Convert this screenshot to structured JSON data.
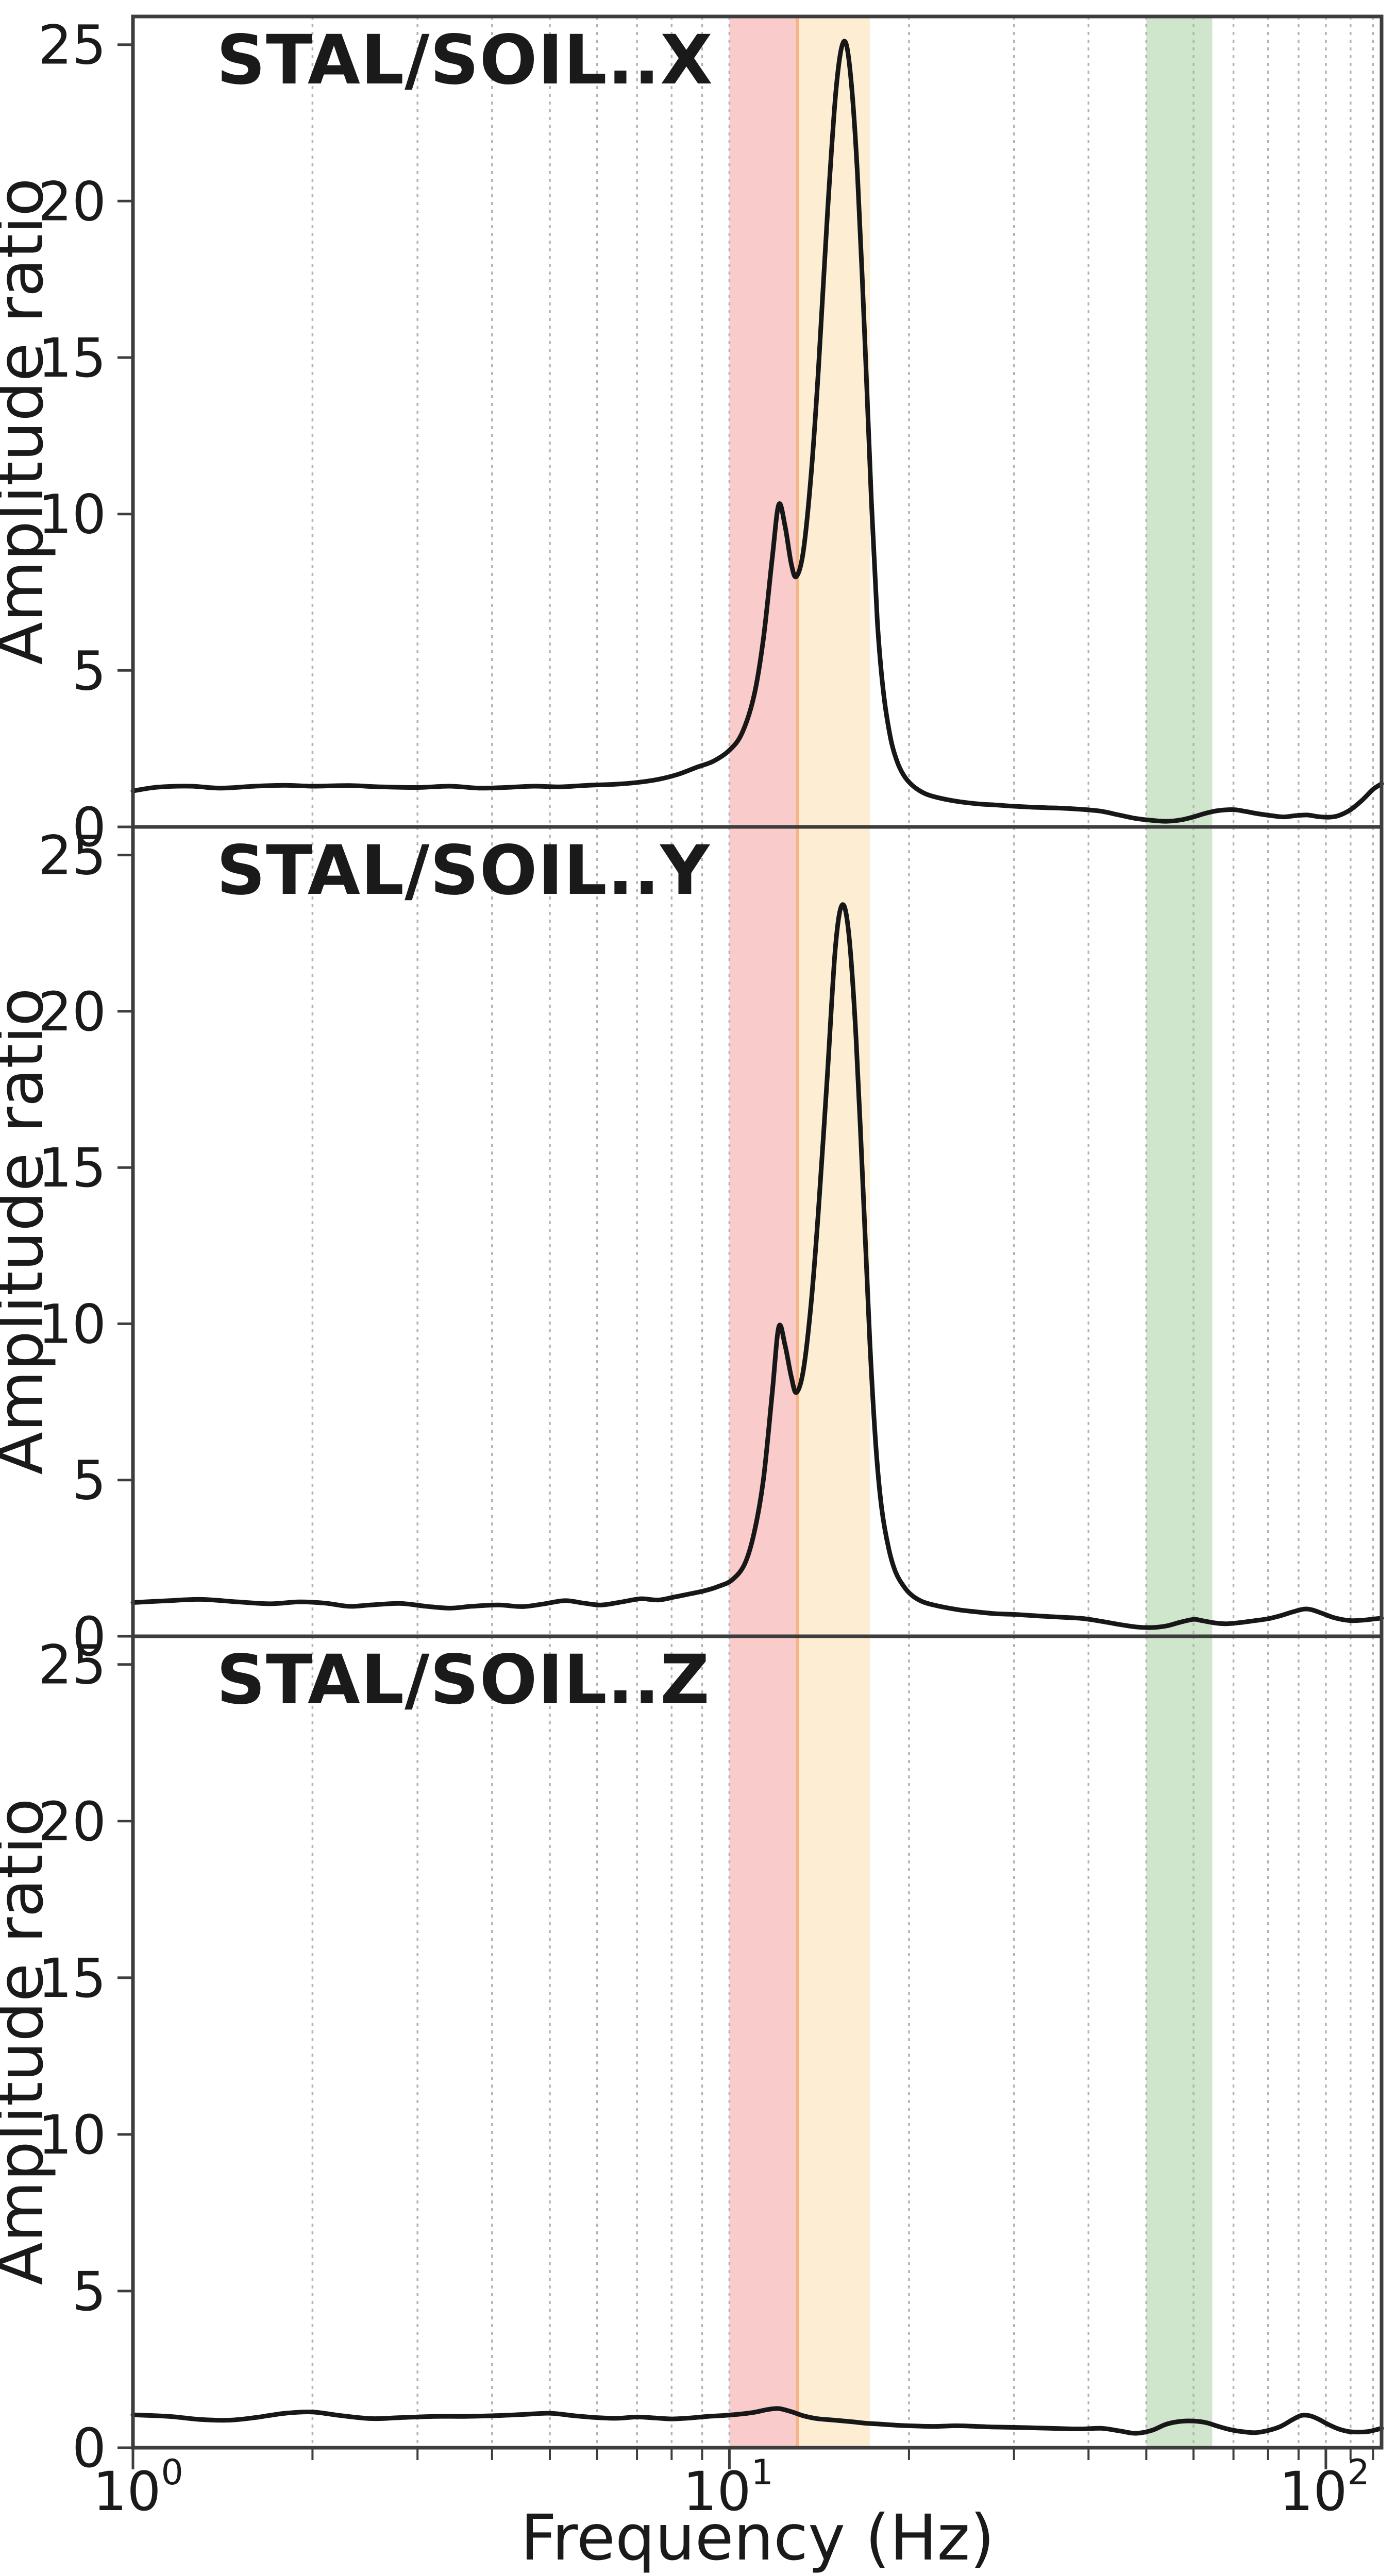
{
  "figure": {
    "background": "#ffffff",
    "xlabel": "Frequency (Hz)",
    "ylabel": "Amplitude ratio",
    "y_ticks": [
      0,
      5,
      10,
      15,
      20,
      25
    ],
    "x_ticks": [
      {
        "base": "10",
        "exp": "0",
        "hz": 1
      },
      {
        "base": "10",
        "exp": "1",
        "hz": 10
      },
      {
        "base": "10",
        "exp": "2",
        "hz": 100
      }
    ],
    "x_minor_tick_hz": [
      2,
      3,
      4,
      5,
      6,
      7,
      8,
      9,
      20,
      30,
      40,
      50,
      60,
      70,
      80,
      90,
      110,
      120
    ],
    "grid_hz": [
      2,
      3,
      4,
      5,
      6,
      7,
      8,
      9,
      10,
      20,
      30,
      40,
      50,
      60,
      70,
      80,
      90,
      100,
      110,
      120
    ],
    "colors": {
      "curve": "#171717",
      "grid": "#b3b3b3",
      "spine": "#3d3d3d",
      "band_red": "#f9cbcb",
      "band_orange": "#fdeed3",
      "band_seam": "#f7b488",
      "band_green": "#cfe6cc"
    },
    "bands": [
      {
        "name": "band-red",
        "from_hz": 10,
        "to_hz": 13,
        "color_key": "band_red"
      },
      {
        "name": "band-orange",
        "from_hz": 13,
        "to_hz": 17.2,
        "color_key": "band_orange"
      },
      {
        "name": "band-green",
        "from_hz": 50,
        "to_hz": 64.5,
        "color_key": "band_green"
      }
    ]
  },
  "chart_data": [
    {
      "type": "line",
      "title": "STAL/SOIL..X",
      "xlabel": "Frequency (Hz)",
      "ylabel": "Amplitude ratio",
      "xscale": "log",
      "xlim": [
        1,
        124
      ],
      "ylim": [
        0,
        25.9
      ],
      "grid": true,
      "highlight_bands_hz": [
        [
          10,
          13
        ],
        [
          13,
          17.2
        ],
        [
          50,
          64.5
        ]
      ],
      "peaks": [
        {
          "hz": 12.1,
          "value": 10.3
        },
        {
          "hz": 15.55,
          "value": 25.1
        }
      ],
      "points": [
        [
          1,
          1.15
        ],
        [
          1.1,
          1.27
        ],
        [
          1.25,
          1.3
        ],
        [
          1.4,
          1.24
        ],
        [
          1.6,
          1.3
        ],
        [
          1.8,
          1.33
        ],
        [
          2.0,
          1.3
        ],
        [
          2.3,
          1.32
        ],
        [
          2.6,
          1.28
        ],
        [
          3.0,
          1.26
        ],
        [
          3.4,
          1.3
        ],
        [
          3.8,
          1.24
        ],
        [
          4.2,
          1.26
        ],
        [
          4.7,
          1.3
        ],
        [
          5.2,
          1.28
        ],
        [
          5.8,
          1.33
        ],
        [
          6.4,
          1.36
        ],
        [
          7.0,
          1.42
        ],
        [
          7.6,
          1.52
        ],
        [
          8.2,
          1.68
        ],
        [
          8.8,
          1.9
        ],
        [
          9.4,
          2.1
        ],
        [
          10.0,
          2.45
        ],
        [
          10.5,
          3.0
        ],
        [
          11.0,
          4.2
        ],
        [
          11.4,
          6.0
        ],
        [
          11.8,
          8.6
        ],
        [
          12.1,
          10.3
        ],
        [
          12.4,
          9.6
        ],
        [
          12.7,
          8.4
        ],
        [
          12.95,
          8.0
        ],
        [
          13.3,
          8.8
        ],
        [
          13.7,
          11.2
        ],
        [
          14.1,
          14.6
        ],
        [
          14.6,
          19.6
        ],
        [
          15.1,
          23.6
        ],
        [
          15.55,
          25.1
        ],
        [
          15.95,
          24.1
        ],
        [
          16.4,
          20.8
        ],
        [
          16.9,
          15.2
        ],
        [
          17.3,
          10.4
        ],
        [
          17.7,
          6.6
        ],
        [
          18.1,
          4.4
        ],
        [
          18.6,
          2.9
        ],
        [
          19.1,
          2.1
        ],
        [
          19.6,
          1.65
        ],
        [
          20.2,
          1.35
        ],
        [
          21,
          1.12
        ],
        [
          22,
          0.97
        ],
        [
          24,
          0.82
        ],
        [
          26,
          0.74
        ],
        [
          28,
          0.7
        ],
        [
          30,
          0.66
        ],
        [
          33,
          0.62
        ],
        [
          36,
          0.6
        ],
        [
          39,
          0.56
        ],
        [
          42,
          0.5
        ],
        [
          45,
          0.38
        ],
        [
          48,
          0.27
        ],
        [
          51,
          0.21
        ],
        [
          54,
          0.18
        ],
        [
          57,
          0.22
        ],
        [
          60,
          0.32
        ],
        [
          63,
          0.44
        ],
        [
          66,
          0.52
        ],
        [
          70,
          0.55
        ],
        [
          73,
          0.5
        ],
        [
          77,
          0.42
        ],
        [
          81,
          0.36
        ],
        [
          85,
          0.32
        ],
        [
          89,
          0.36
        ],
        [
          93,
          0.38
        ],
        [
          97,
          0.33
        ],
        [
          101,
          0.31
        ],
        [
          105,
          0.36
        ],
        [
          110,
          0.55
        ],
        [
          115,
          0.85
        ],
        [
          120,
          1.2
        ],
        [
          124,
          1.38
        ]
      ]
    },
    {
      "type": "line",
      "title": "STAL/SOIL..Y",
      "xlabel": "Frequency (Hz)",
      "ylabel": "Amplitude ratio",
      "xscale": "log",
      "xlim": [
        1,
        124
      ],
      "ylim": [
        0,
        25.9
      ],
      "grid": true,
      "highlight_bands_hz": [
        [
          10,
          13
        ],
        [
          13,
          17.2
        ],
        [
          50,
          64.5
        ]
      ],
      "peaks": [
        {
          "hz": 12.1,
          "value": 9.9
        },
        {
          "hz": 15.45,
          "value": 23.4
        }
      ],
      "points": [
        [
          1,
          1.08
        ],
        [
          1.15,
          1.14
        ],
        [
          1.3,
          1.18
        ],
        [
          1.5,
          1.1
        ],
        [
          1.7,
          1.04
        ],
        [
          1.9,
          1.1
        ],
        [
          2.1,
          1.06
        ],
        [
          2.3,
          0.96
        ],
        [
          2.5,
          1.0
        ],
        [
          2.8,
          1.05
        ],
        [
          3.1,
          0.96
        ],
        [
          3.4,
          0.9
        ],
        [
          3.7,
          0.96
        ],
        [
          4.1,
          1.0
        ],
        [
          4.5,
          0.95
        ],
        [
          4.9,
          1.04
        ],
        [
          5.3,
          1.14
        ],
        [
          5.7,
          1.06
        ],
        [
          6.1,
          1.0
        ],
        [
          6.6,
          1.1
        ],
        [
          7.1,
          1.2
        ],
        [
          7.6,
          1.16
        ],
        [
          8.1,
          1.26
        ],
        [
          8.6,
          1.36
        ],
        [
          9.1,
          1.46
        ],
        [
          9.6,
          1.6
        ],
        [
          10.1,
          1.8
        ],
        [
          10.6,
          2.3
        ],
        [
          11.0,
          3.3
        ],
        [
          11.4,
          5.0
        ],
        [
          11.8,
          7.8
        ],
        [
          12.1,
          9.9
        ],
        [
          12.4,
          9.3
        ],
        [
          12.7,
          8.3
        ],
        [
          12.95,
          7.8
        ],
        [
          13.3,
          8.5
        ],
        [
          13.7,
          10.6
        ],
        [
          14.1,
          13.6
        ],
        [
          14.6,
          18.0
        ],
        [
          15.05,
          22.0
        ],
        [
          15.45,
          23.4
        ],
        [
          15.85,
          22.5
        ],
        [
          16.3,
          19.2
        ],
        [
          16.8,
          13.8
        ],
        [
          17.2,
          9.4
        ],
        [
          17.6,
          6.1
        ],
        [
          18.0,
          4.1
        ],
        [
          18.5,
          2.8
        ],
        [
          19.0,
          2.05
        ],
        [
          19.6,
          1.6
        ],
        [
          20.2,
          1.32
        ],
        [
          21,
          1.12
        ],
        [
          22,
          1.0
        ],
        [
          24,
          0.86
        ],
        [
          26,
          0.78
        ],
        [
          28,
          0.72
        ],
        [
          30,
          0.7
        ],
        [
          33,
          0.65
        ],
        [
          36,
          0.61
        ],
        [
          39,
          0.57
        ],
        [
          42,
          0.48
        ],
        [
          45,
          0.38
        ],
        [
          48,
          0.3
        ],
        [
          51,
          0.28
        ],
        [
          54,
          0.33
        ],
        [
          57,
          0.45
        ],
        [
          60,
          0.54
        ],
        [
          62,
          0.5
        ],
        [
          65,
          0.43
        ],
        [
          68,
          0.4
        ],
        [
          72,
          0.44
        ],
        [
          76,
          0.5
        ],
        [
          80,
          0.56
        ],
        [
          84,
          0.66
        ],
        [
          88,
          0.78
        ],
        [
          92,
          0.87
        ],
        [
          95,
          0.84
        ],
        [
          99,
          0.72
        ],
        [
          103,
          0.6
        ],
        [
          107,
          0.53
        ],
        [
          111,
          0.5
        ],
        [
          116,
          0.52
        ],
        [
          120,
          0.55
        ],
        [
          124,
          0.58
        ]
      ]
    },
    {
      "type": "line",
      "title": "STAL/SOIL..Z",
      "xlabel": "Frequency (Hz)",
      "ylabel": "Amplitude ratio",
      "xscale": "log",
      "xlim": [
        1,
        124
      ],
      "ylim": [
        0,
        25.9
      ],
      "grid": true,
      "highlight_bands_hz": [
        [
          10,
          13
        ],
        [
          13,
          17.2
        ],
        [
          50,
          64.5
        ]
      ],
      "peaks": [
        {
          "hz": 12.1,
          "value": 1.25
        },
        {
          "hz": 91,
          "value": 1.03
        }
      ],
      "points": [
        [
          1,
          1.05
        ],
        [
          1.15,
          1.0
        ],
        [
          1.3,
          0.9
        ],
        [
          1.45,
          0.88
        ],
        [
          1.6,
          0.96
        ],
        [
          1.8,
          1.1
        ],
        [
          2.0,
          1.14
        ],
        [
          2.2,
          1.04
        ],
        [
          2.5,
          0.93
        ],
        [
          2.8,
          0.96
        ],
        [
          3.2,
          1.0
        ],
        [
          3.6,
          1.0
        ],
        [
          4.0,
          1.02
        ],
        [
          4.5,
          1.06
        ],
        [
          5.0,
          1.1
        ],
        [
          5.5,
          1.02
        ],
        [
          6.0,
          0.96
        ],
        [
          6.5,
          0.94
        ],
        [
          7.0,
          0.98
        ],
        [
          7.5,
          0.95
        ],
        [
          8.0,
          0.92
        ],
        [
          8.6,
          0.95
        ],
        [
          9.2,
          1.0
        ],
        [
          9.8,
          1.03
        ],
        [
          10.4,
          1.07
        ],
        [
          11.0,
          1.13
        ],
        [
          11.6,
          1.22
        ],
        [
          12.1,
          1.25
        ],
        [
          12.7,
          1.15
        ],
        [
          13.3,
          1.02
        ],
        [
          14.0,
          0.93
        ],
        [
          15.0,
          0.88
        ],
        [
          16.0,
          0.83
        ],
        [
          17.0,
          0.78
        ],
        [
          18.0,
          0.75
        ],
        [
          19.0,
          0.72
        ],
        [
          20.0,
          0.7
        ],
        [
          22,
          0.68
        ],
        [
          24,
          0.7
        ],
        [
          26,
          0.68
        ],
        [
          28,
          0.66
        ],
        [
          30,
          0.65
        ],
        [
          33,
          0.63
        ],
        [
          36,
          0.61
        ],
        [
          39,
          0.6
        ],
        [
          42,
          0.62
        ],
        [
          45,
          0.54
        ],
        [
          48,
          0.46
        ],
        [
          51,
          0.55
        ],
        [
          54,
          0.75
        ],
        [
          57,
          0.84
        ],
        [
          60,
          0.85
        ],
        [
          63,
          0.8
        ],
        [
          66,
          0.68
        ],
        [
          69,
          0.58
        ],
        [
          72,
          0.52
        ],
        [
          76,
          0.48
        ],
        [
          80,
          0.55
        ],
        [
          84,
          0.68
        ],
        [
          88,
          0.9
        ],
        [
          91,
          1.03
        ],
        [
          94,
          1.02
        ],
        [
          97,
          0.92
        ],
        [
          101,
          0.74
        ],
        [
          105,
          0.6
        ],
        [
          109,
          0.52
        ],
        [
          113,
          0.5
        ],
        [
          118,
          0.52
        ],
        [
          124,
          0.62
        ]
      ]
    }
  ]
}
